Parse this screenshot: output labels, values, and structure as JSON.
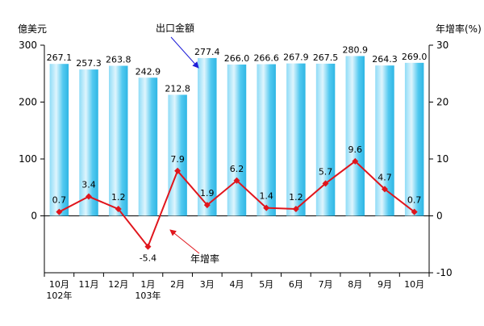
{
  "chart_data": {
    "type": "bar",
    "categories": [
      [
        "10月",
        "102年"
      ],
      [
        "11月"
      ],
      [
        "12月"
      ],
      [
        "1月",
        "103年"
      ],
      [
        "2月"
      ],
      [
        "3月"
      ],
      [
        "4月"
      ],
      [
        "5月"
      ],
      [
        "6月"
      ],
      [
        "7月"
      ],
      [
        "8月"
      ],
      [
        "9月"
      ],
      [
        "10月"
      ]
    ],
    "series": [
      {
        "name": "出口金額",
        "type": "bar",
        "axis": "left",
        "values": [
          267.1,
          257.3,
          263.8,
          242.9,
          212.8,
          277.4,
          266.0,
          266.6,
          267.9,
          267.5,
          280.9,
          264.3,
          269.0
        ],
        "labels": [
          "267.1",
          "257.3",
          "263.8",
          "242.9",
          "212.8",
          "277.4",
          "266.0",
          "266.6",
          "267.9",
          "267.5",
          "280.9",
          "264.3",
          "269.0"
        ],
        "color": "#3fc3ee"
      },
      {
        "name": "年增率",
        "type": "line",
        "axis": "right",
        "values": [
          0.7,
          3.4,
          1.2,
          -5.4,
          7.9,
          1.9,
          6.2,
          1.4,
          1.2,
          5.7,
          9.6,
          4.7,
          0.7
        ],
        "labels": [
          "0.7",
          "3.4",
          "1.2",
          "-5.4",
          "7.9",
          "1.9",
          "6.2",
          "1.4",
          "1.2",
          "5.7",
          "9.6",
          "4.7",
          "0.7"
        ],
        "color": "#e0151c"
      }
    ],
    "y_left": {
      "label": "億美元",
      "ticks": [
        0,
        100,
        200,
        300
      ],
      "ylim": [
        -100,
        300
      ]
    },
    "y_right": {
      "label": "年增率(%)",
      "ticks": [
        -10,
        0,
        10,
        20,
        30
      ],
      "ylim": [
        -10,
        30
      ]
    },
    "annotations": [
      {
        "text": "出口金額",
        "target": "bar",
        "arrow_color": "#1f1fd8"
      },
      {
        "text": "年增率",
        "target": "line",
        "arrow_color": "#e0151c"
      }
    ],
    "grid": false,
    "legend": "none"
  }
}
